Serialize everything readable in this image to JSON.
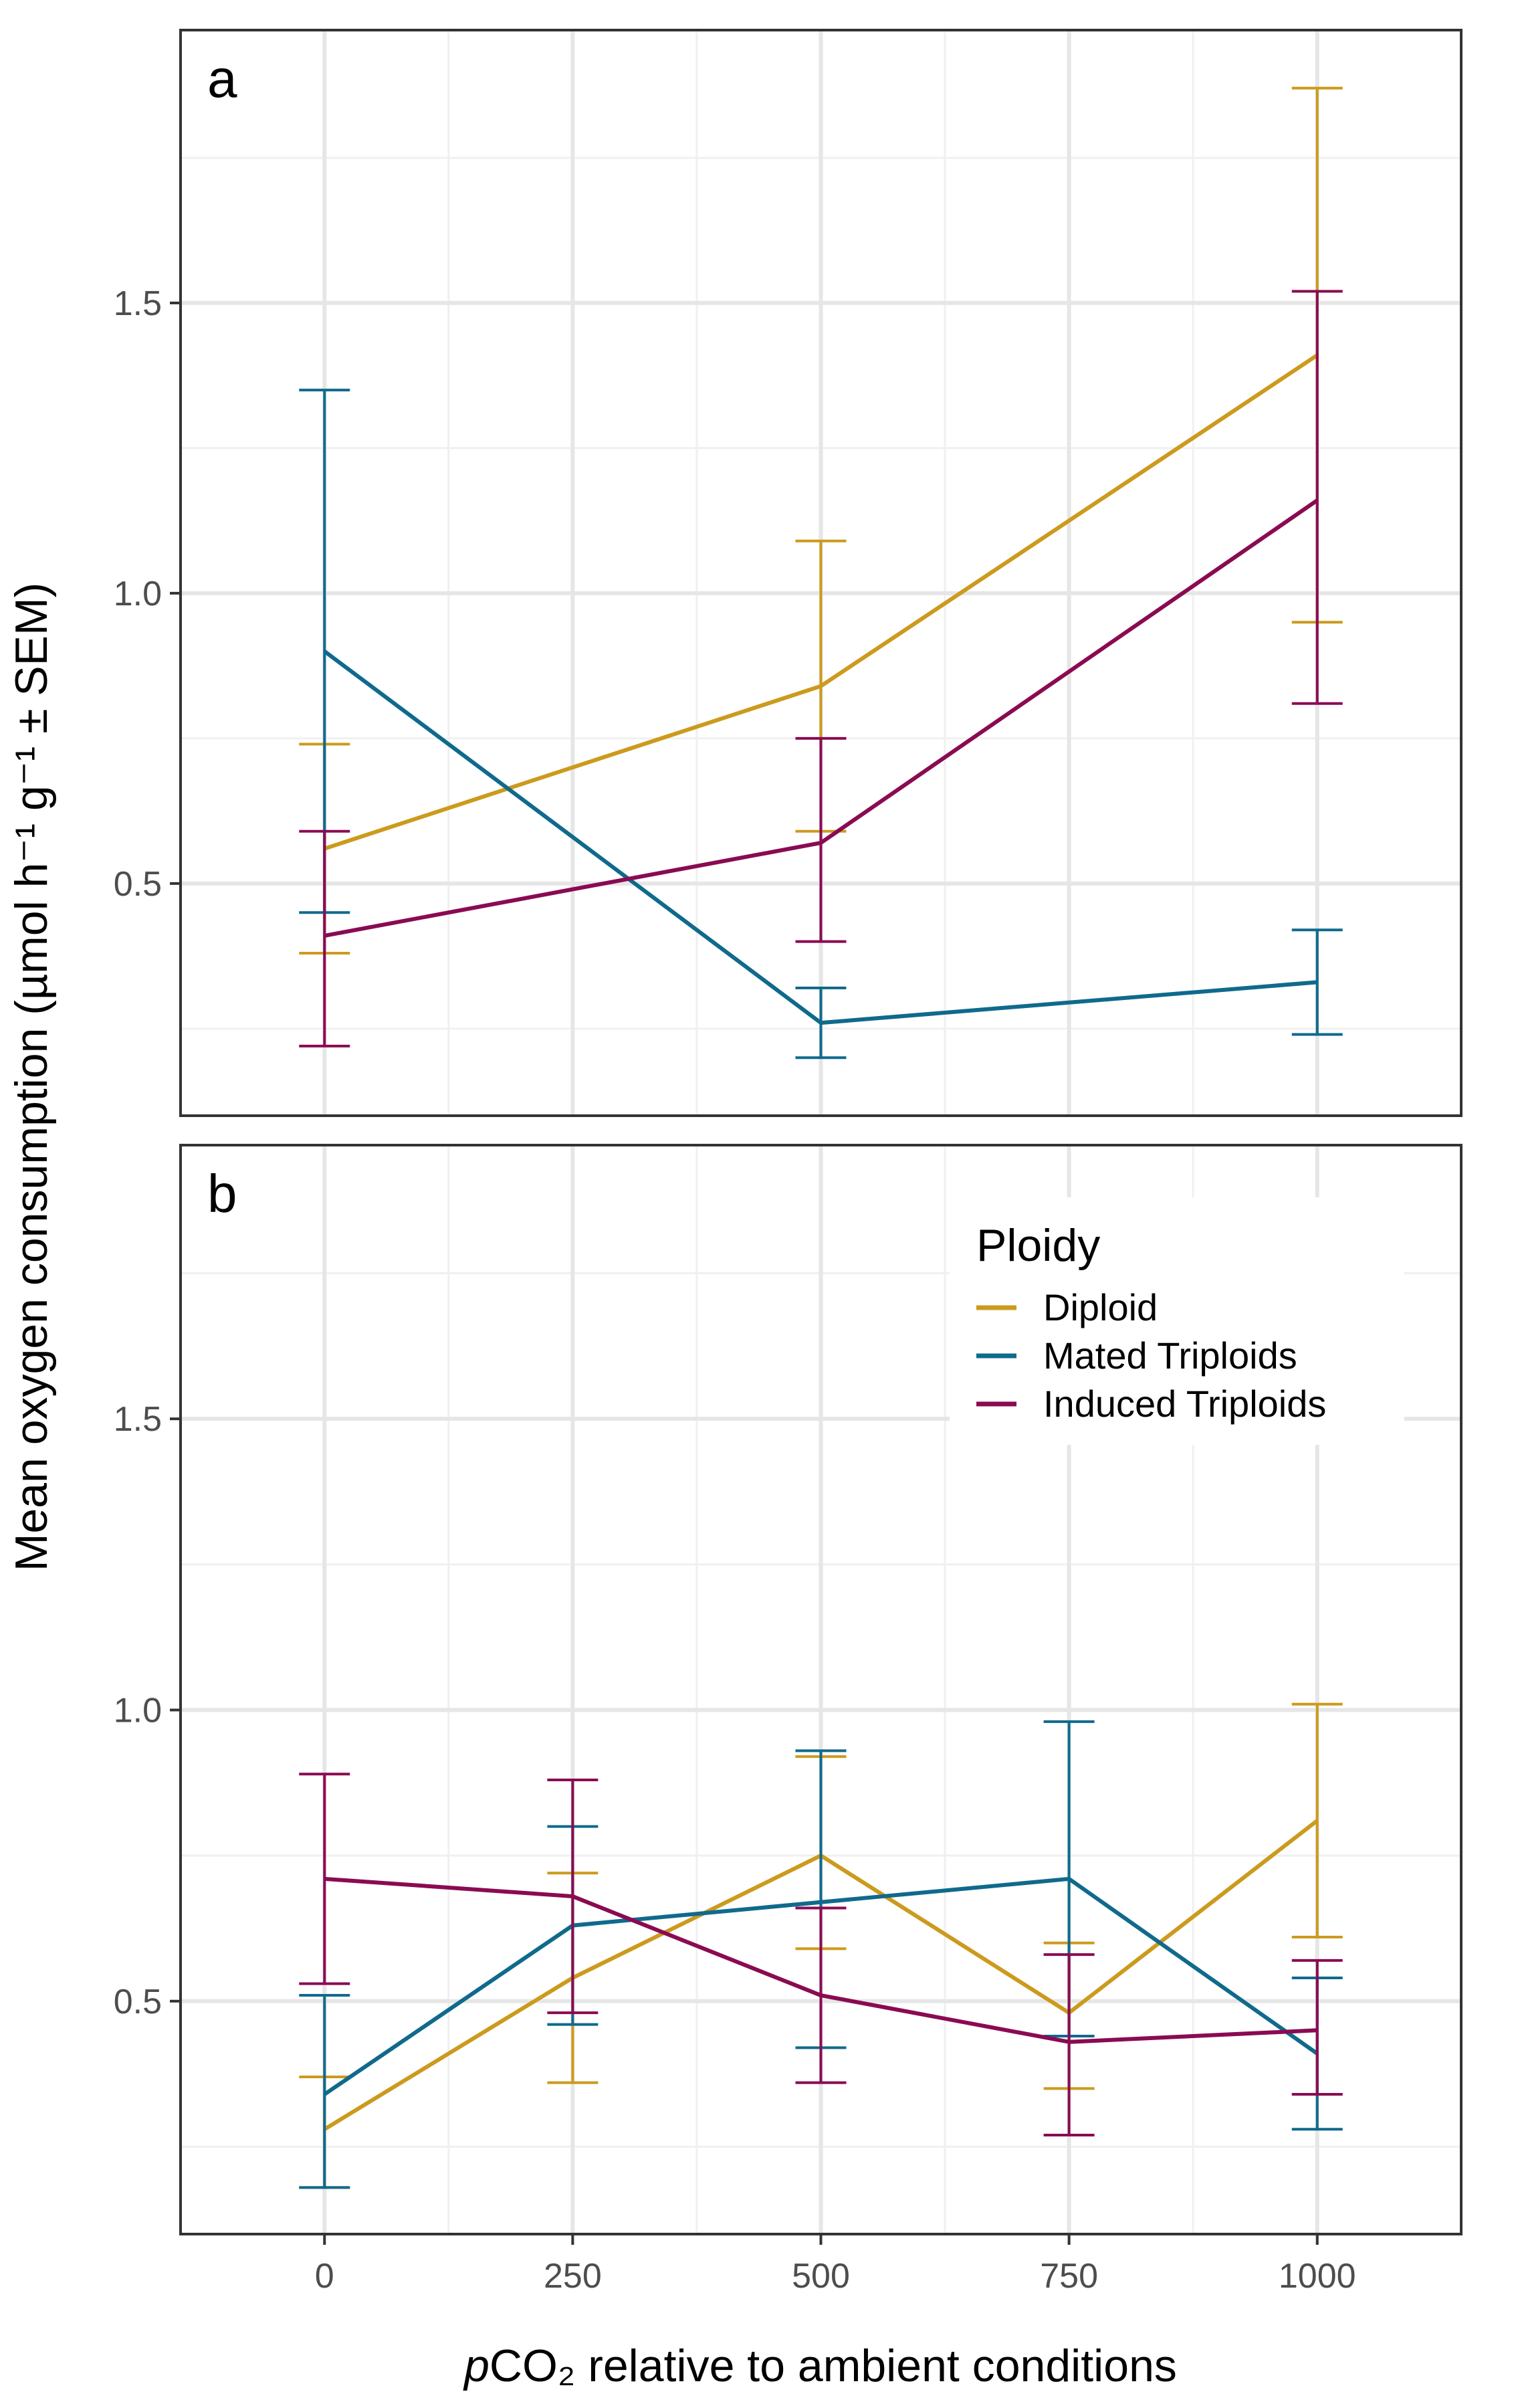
{
  "chart_data": {
    "type": "line",
    "xlabel_italic": "p",
    "xlabel_rest": "CO₂ relative to ambient conditions",
    "ylabel": "Mean oxygen consumption (µmol h⁻¹ g⁻¹ ± SEM)",
    "xlim": [
      -145,
      1145
    ],
    "ylim": [
      0.1,
      1.97
    ],
    "x_ticks": [
      0,
      250,
      500,
      750,
      1000
    ],
    "y_ticks": [
      0.5,
      1.0,
      1.5
    ],
    "y_tick_labels": [
      "0.5",
      "1.0",
      "1.5"
    ],
    "grid": true,
    "colors": {
      "Diploid": "#cc9a1d",
      "Mated Triploids": "#0f6a8c",
      "Induced Triploids": "#8a0b52"
    },
    "legend": {
      "title": "Ploidy",
      "placement": "top-right",
      "entries": [
        "Diploid",
        "Mated Triploids",
        "Induced Triploids"
      ]
    },
    "panels": [
      {
        "label": "a",
        "series": [
          {
            "name": "Diploid",
            "x": [
              0,
              500,
              1000
            ],
            "y": [
              0.56,
              0.84,
              1.41
            ],
            "lower": [
              0.38,
              0.59,
              0.95
            ],
            "upper": [
              0.74,
              1.09,
              1.87
            ]
          },
          {
            "name": "Mated Triploids",
            "x": [
              0,
              500,
              1000
            ],
            "y": [
              0.9,
              0.26,
              0.33
            ],
            "lower": [
              0.45,
              0.2,
              0.24
            ],
            "upper": [
              1.35,
              0.32,
              0.42
            ]
          },
          {
            "name": "Induced Triploids",
            "x": [
              0,
              500,
              1000
            ],
            "y": [
              0.41,
              0.57,
              1.16
            ],
            "lower": [
              0.22,
              0.4,
              0.81
            ],
            "upper": [
              0.59,
              0.75,
              1.52
            ]
          }
        ]
      },
      {
        "label": "b",
        "series": [
          {
            "name": "Diploid",
            "x": [
              0,
              250,
              500,
              750,
              1000
            ],
            "y": [
              0.28,
              0.54,
              0.75,
              0.48,
              0.81
            ],
            "lower": [
              0.18,
              0.36,
              0.59,
              0.35,
              0.61
            ],
            "upper": [
              0.37,
              0.72,
              0.92,
              0.6,
              1.01
            ]
          },
          {
            "name": "Mated Triploids",
            "x": [
              0,
              250,
              500,
              750,
              1000
            ],
            "y": [
              0.34,
              0.63,
              0.67,
              0.71,
              0.41
            ],
            "lower": [
              0.18,
              0.46,
              0.42,
              0.44,
              0.28
            ],
            "upper": [
              0.51,
              0.8,
              0.93,
              0.98,
              0.54
            ]
          },
          {
            "name": "Induced Triploids",
            "x": [
              0,
              250,
              500,
              750,
              1000
            ],
            "y": [
              0.71,
              0.68,
              0.51,
              0.43,
              0.45
            ],
            "lower": [
              0.53,
              0.48,
              0.36,
              0.27,
              0.34
            ],
            "upper": [
              0.89,
              0.88,
              0.66,
              0.58,
              0.57
            ]
          }
        ]
      }
    ]
  }
}
